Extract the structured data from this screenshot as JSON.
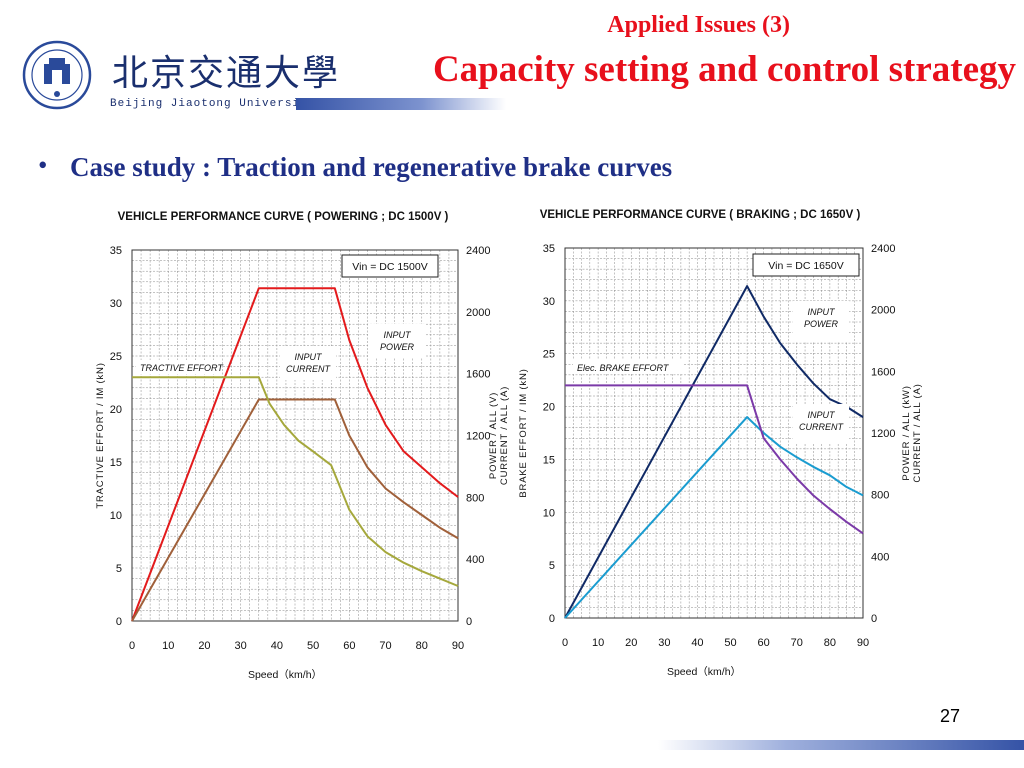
{
  "header": {
    "subtitle": "Applied Issues (3)",
    "title": "Capacity setting and control strategy",
    "logo_cn": "北京交通大學",
    "logo_en": "Beijing Jiaotong University"
  },
  "bullet": "Case study : Traction and regenerative brake curves",
  "page_number": "27",
  "colors": {
    "title": "#e8101c",
    "bullet": "#1f2f86",
    "left_red": "#e31a1c",
    "left_brown": "#a0603a",
    "left_olive": "#a5a83c",
    "right_navy": "#102a66",
    "right_blue": "#1a9cd0",
    "right_purple": "#7b3aa8"
  },
  "chart_data": [
    {
      "type": "line",
      "title": "VEHICLE PERFORMANCE CURVE ( POWERING ; DC 1500V )",
      "xlabel": "Speed（km/h）",
      "ylabel_left": "TRACTIVE EFFORT  /  IM  (kN)",
      "ylabel_right": [
        "POWER  /  ALL  (V)",
        "CURRENT  /  ALL  (A)"
      ],
      "xlim": [
        0,
        90
      ],
      "ylim_left": [
        0,
        35
      ],
      "ylim_right": [
        0,
        2400
      ],
      "x_ticks": [
        0,
        10,
        20,
        30,
        40,
        50,
        60,
        70,
        80,
        90
      ],
      "y_ticks_left": [
        0,
        5,
        10,
        15,
        20,
        25,
        30,
        35
      ],
      "y_ticks_right": [
        0,
        400,
        800,
        1200,
        1600,
        2000,
        2400
      ],
      "grid": true,
      "legend_box": "Vin =   DC 1500V",
      "series": [
        {
          "name": "INPUT POWER",
          "axis": "left",
          "color": "#e31a1c",
          "x": [
            0,
            35,
            56,
            60,
            65,
            70,
            75,
            80,
            85,
            90
          ],
          "y": [
            0,
            31.4,
            31.4,
            26.5,
            22,
            18.5,
            16,
            14.5,
            13,
            11.7
          ]
        },
        {
          "name": "INPUT CURRENT",
          "axis": "left",
          "color": "#a0603a",
          "x": [
            0,
            35,
            56,
            60,
            65,
            70,
            75,
            80,
            85,
            90
          ],
          "y": [
            0,
            20.9,
            20.9,
            17.5,
            14.5,
            12.5,
            11.2,
            10,
            8.8,
            7.8
          ]
        },
        {
          "name": "TRACTIVE EFFORT",
          "axis": "left",
          "color": "#a5a83c",
          "x": [
            0,
            35,
            38,
            42,
            46,
            50,
            55,
            60,
            65,
            70,
            75,
            80,
            85,
            90
          ],
          "y": [
            23,
            23,
            20.5,
            18.5,
            17,
            16,
            14.7,
            10.5,
            8,
            6.5,
            5.5,
            4.7,
            4,
            3.3
          ]
        }
      ]
    },
    {
      "type": "line",
      "title": "VEHICLE PERFORMANCE CURVE ( BRAKING ; DC 1650V )",
      "xlabel": "Speed（km/h）",
      "ylabel_left": "BRAKE EFFORT  /  IM  (kN)",
      "ylabel_right": [
        "POWER  /  ALL  (kW)",
        "CURRENT  /  ALL  (A)"
      ],
      "xlim": [
        0,
        90
      ],
      "ylim_left": [
        0,
        35
      ],
      "ylim_right": [
        0,
        2400
      ],
      "x_ticks": [
        0,
        10,
        20,
        30,
        40,
        50,
        60,
        70,
        80,
        90
      ],
      "y_ticks_left": [
        0,
        5,
        10,
        15,
        20,
        25,
        30,
        35
      ],
      "y_ticks_right": [
        0,
        400,
        800,
        1200,
        1600,
        2000,
        2400
      ],
      "grid": true,
      "legend_box": "Vin   =   DC 1650V",
      "series": [
        {
          "name": "INPUT POWER",
          "axis": "left",
          "color": "#102a66",
          "x": [
            0,
            55,
            60,
            65,
            70,
            75,
            80,
            85,
            90
          ],
          "y": [
            0,
            31.4,
            28.5,
            26,
            24,
            22.2,
            20.7,
            20,
            19
          ]
        },
        {
          "name": "INPUT CURRENT",
          "axis": "left",
          "color": "#1a9cd0",
          "x": [
            0,
            55,
            60,
            65,
            70,
            75,
            80,
            85,
            90
          ],
          "y": [
            0,
            19,
            17.5,
            16.2,
            15.2,
            14.3,
            13.5,
            12.4,
            11.6
          ]
        },
        {
          "name": "Elec. BRAKE EFFORT",
          "axis": "left",
          "color": "#7b3aa8",
          "x": [
            0,
            55,
            57,
            60,
            65,
            70,
            75,
            80,
            85,
            90
          ],
          "y": [
            22,
            22,
            20,
            17,
            15,
            13.2,
            11.6,
            10.3,
            9.1,
            8
          ]
        }
      ]
    }
  ]
}
